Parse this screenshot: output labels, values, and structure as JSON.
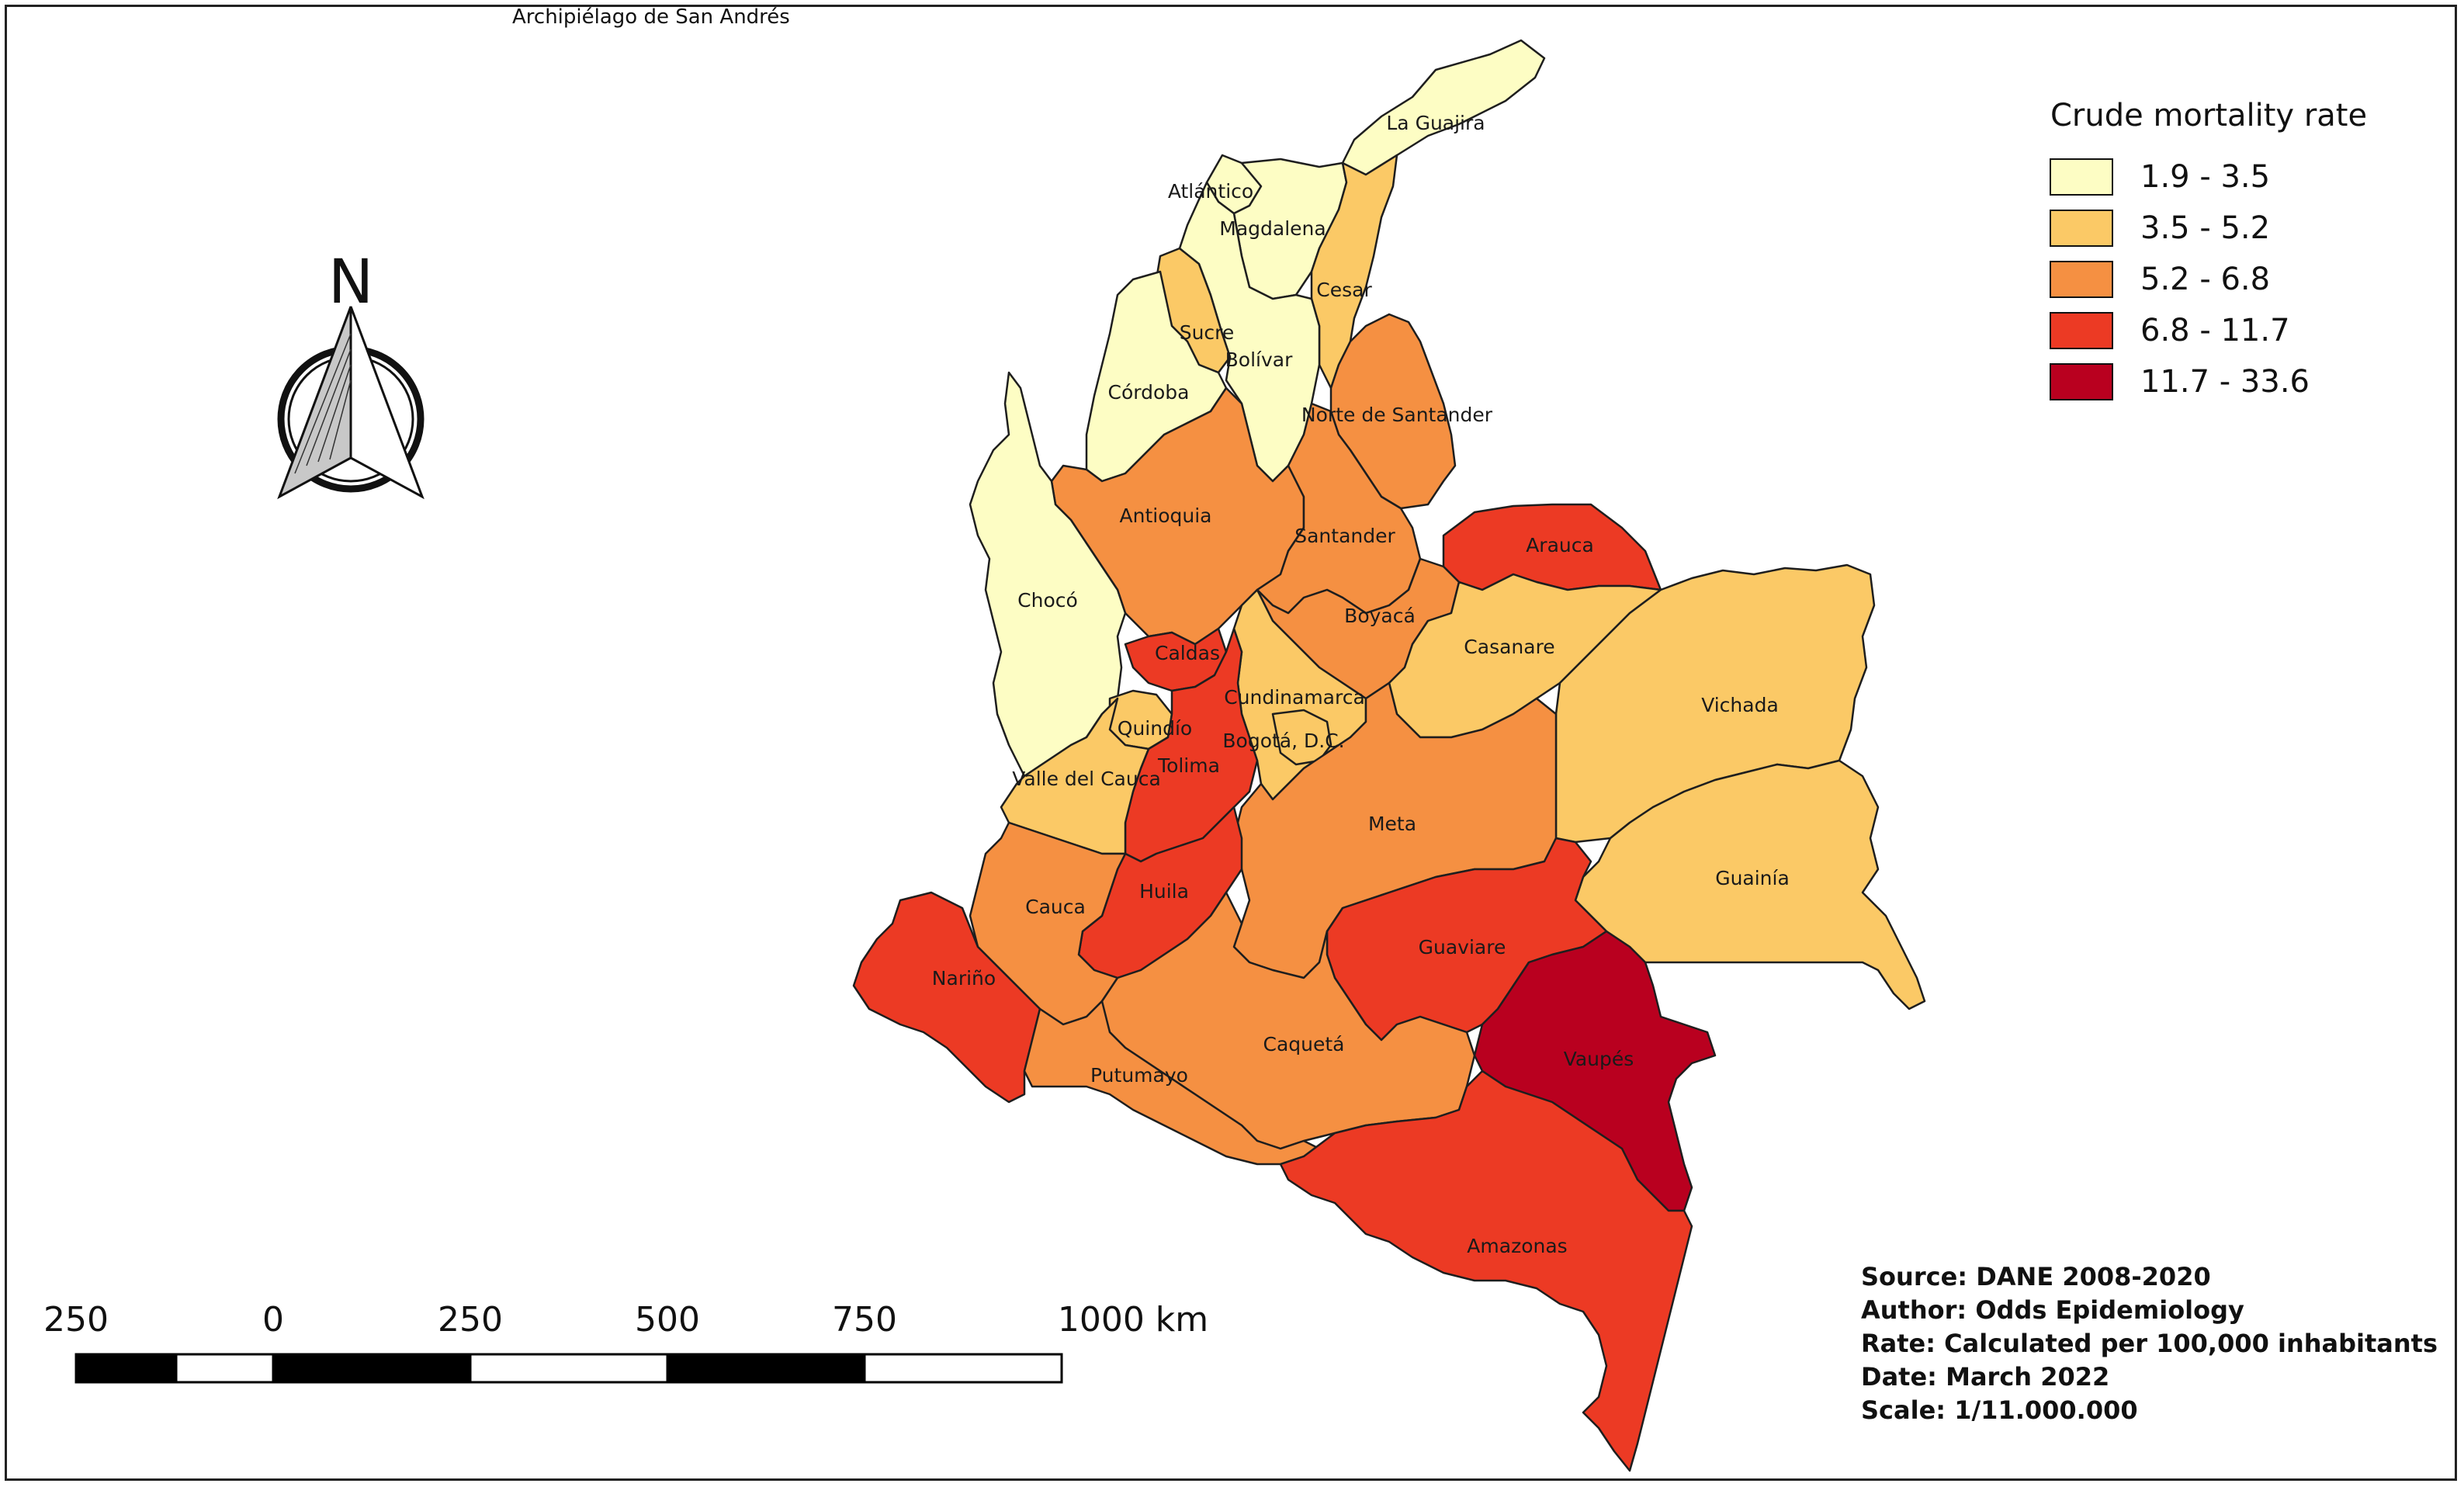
{
  "inset_label": "Archipiélago de San Andrés",
  "legend": {
    "title": "Crude mortality rate",
    "classes": [
      {
        "label": "1.9 - 3.5",
        "color": "#fdfdc4"
      },
      {
        "label": "3.5 - 5.2",
        "color": "#fbc966"
      },
      {
        "label": "5.2 - 6.8",
        "color": "#f59042"
      },
      {
        "label": "6.8 - 11.7",
        "color": "#ec3a24"
      },
      {
        "label": "11.7 - 33.6",
        "color": "#b9001f"
      }
    ]
  },
  "departments": [
    {
      "name": "La Guajira",
      "class": 0
    },
    {
      "name": "Atlántico",
      "class": 0
    },
    {
      "name": "Magdalena",
      "class": 0
    },
    {
      "name": "Cesar",
      "class": 1
    },
    {
      "name": "Sucre",
      "class": 1
    },
    {
      "name": "Bolívar",
      "class": 0
    },
    {
      "name": "Córdoba",
      "class": 0
    },
    {
      "name": "Norte de Santander",
      "class": 2
    },
    {
      "name": "Antioquia",
      "class": 2
    },
    {
      "name": "Santander",
      "class": 2
    },
    {
      "name": "Arauca",
      "class": 3
    },
    {
      "name": "Chocó",
      "class": 0
    },
    {
      "name": "Boyacá",
      "class": 2
    },
    {
      "name": "Casanare",
      "class": 1
    },
    {
      "name": "Vichada",
      "class": 1
    },
    {
      "name": "Caldas",
      "class": 3
    },
    {
      "name": "Cundinamarca",
      "class": 1
    },
    {
      "name": "Quindío",
      "class": 1
    },
    {
      "name": "Bogotá, D.C.",
      "class": 1
    },
    {
      "name": "Tolima",
      "class": 3
    },
    {
      "name": "Valle del Cauca",
      "class": 1
    },
    {
      "name": "Meta",
      "class": 2
    },
    {
      "name": "Guainía",
      "class": 1
    },
    {
      "name": "Huila",
      "class": 3
    },
    {
      "name": "Cauca",
      "class": 2
    },
    {
      "name": "Guaviare",
      "class": 3
    },
    {
      "name": "Nariño",
      "class": 3
    },
    {
      "name": "Caquetá",
      "class": 2
    },
    {
      "name": "Vaupés",
      "class": 4
    },
    {
      "name": "Putumayo",
      "class": 2
    },
    {
      "name": "Amazonas",
      "class": 3
    }
  ],
  "north_arrow": {
    "letter": "N",
    "icon": "north-arrow-icon"
  },
  "scale_bar": {
    "labels": [
      "250",
      "0",
      "250",
      "500",
      "750",
      "1000 km"
    ]
  },
  "info": {
    "source": "Source: DANE 2008-2020",
    "author": "Author: Odds Epidemiology",
    "rate": "Rate: Calculated per 100,000 inhabitants",
    "date": "Date: March 2022",
    "scale": "Scale: 1/11.000.000"
  }
}
